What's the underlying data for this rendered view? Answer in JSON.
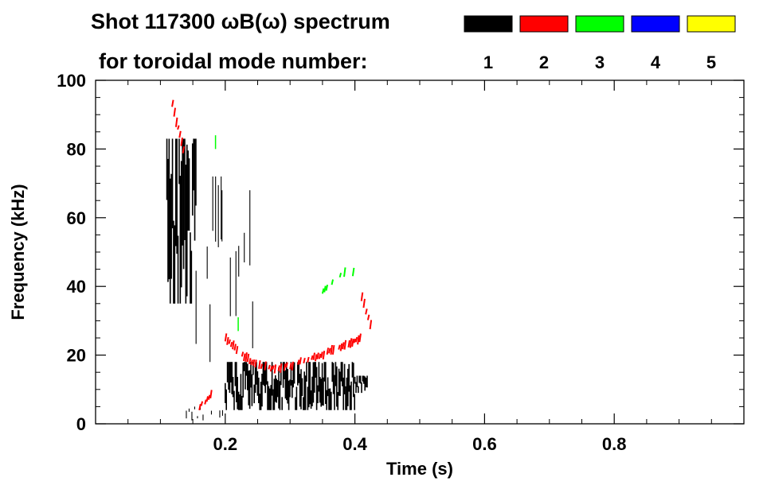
{
  "chart_data": {
    "type": "heatmap",
    "title": "Shot 117300 ωB(ω) spectrum",
    "subtitle": "for toroidal mode number:",
    "xlabel": "Time (s)",
    "ylabel": "Frequency (kHz)",
    "xlim": [
      0.0,
      1.0
    ],
    "ylim": [
      0,
      100
    ],
    "xticks": [
      0.2,
      0.4,
      0.6,
      0.8
    ],
    "xtick_labels": [
      "0.2",
      "0.4",
      "0.6",
      "0.8"
    ],
    "yticks": [
      0,
      20,
      40,
      60,
      80,
      100
    ],
    "ytick_labels": [
      "0",
      "20",
      "40",
      "60",
      "80",
      "100"
    ],
    "legend": {
      "placement": "top-right",
      "entries": [
        {
          "label": "1",
          "color": "#000000"
        },
        {
          "label": "2",
          "color": "#ff0000"
        },
        {
          "label": "3",
          "color": "#00ff00"
        },
        {
          "label": "4",
          "color": "#0000ff"
        },
        {
          "label": "5",
          "color": "#ffff00"
        }
      ]
    },
    "series": [
      {
        "name": "n=1",
        "color": "#000000",
        "segments": [
          {
            "t": [
              0.11,
              0.155
            ],
            "f": [
              35,
              83
            ],
            "density": "dense"
          },
          {
            "t": [
              0.155,
              0.195
            ],
            "f": [
              18,
              72
            ],
            "density": "sparse"
          },
          {
            "t": [
              0.195,
              0.245
            ],
            "f": [
              22,
              68
            ],
            "density": "sparse"
          },
          {
            "t": [
              0.2,
              0.4
            ],
            "f": [
              4,
              18
            ],
            "density": "dense"
          },
          {
            "t": [
              0.4,
              0.42
            ],
            "f": [
              9,
              14
            ],
            "density": "dense"
          },
          {
            "t": [
              0.14,
              0.2
            ],
            "f": [
              1,
              5
            ],
            "density": "sparse"
          }
        ]
      },
      {
        "name": "n=2",
        "color": "#ff0000",
        "traces": [
          {
            "t": [
              0.118,
              0.124,
              0.132,
              0.14
            ],
            "f": [
              93,
              88,
              82,
              76
            ]
          },
          {
            "t": [
              0.2,
              0.22,
              0.24,
              0.27,
              0.3,
              0.33,
              0.36,
              0.39,
              0.41
            ],
            "f": [
              25,
              21,
              18,
              16,
              17,
              19,
              21,
              23,
              25
            ]
          },
          {
            "t": [
              0.41,
              0.42,
              0.43
            ],
            "f": [
              37,
              31,
              24
            ]
          },
          {
            "t": [
              0.16,
              0.18
            ],
            "f": [
              5,
              9
            ]
          }
        ]
      },
      {
        "name": "n=3",
        "color": "#00ff00",
        "traces": [
          {
            "t": [
              0.35,
              0.37,
              0.38,
              0.39,
              0.4
            ],
            "f": [
              39,
              42,
              44,
              45,
              44
            ]
          },
          {
            "t": [
              0.185
            ],
            "f": [
              82
            ]
          },
          {
            "t": [
              0.22
            ],
            "f": [
              29
            ]
          }
        ]
      },
      {
        "name": "n=4",
        "color": "#0000ff",
        "traces": []
      },
      {
        "name": "n=5",
        "color": "#ffff00",
        "traces": []
      }
    ]
  }
}
